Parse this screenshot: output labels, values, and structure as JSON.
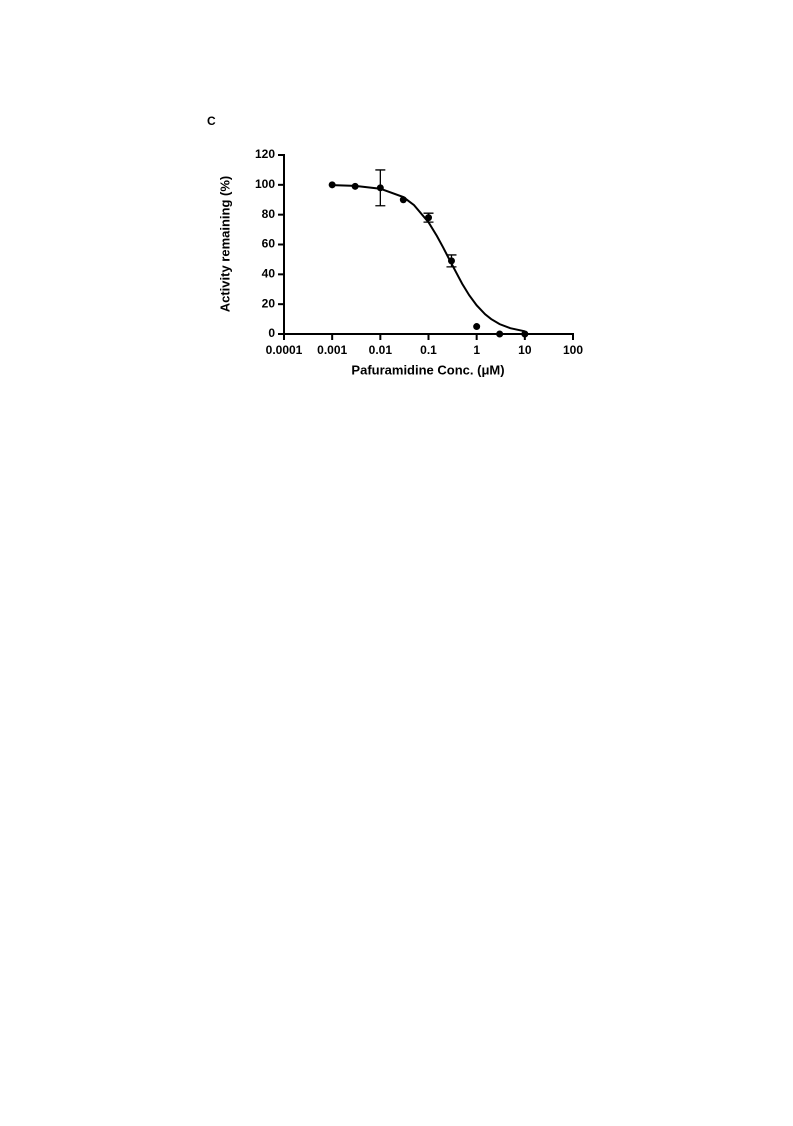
{
  "panel_label": "C",
  "chart_data": {
    "type": "scatter",
    "x_label": "Pafuramidine Conc. (μM)",
    "y_label": "Activity remaining (%)",
    "x": [
      0.001,
      0.003,
      0.01,
      0.03,
      0.1,
      0.3,
      1,
      3,
      10
    ],
    "values": [
      100,
      99,
      98,
      90,
      78,
      49,
      5,
      0,
      0
    ],
    "errors": [
      null,
      null,
      12,
      null,
      3,
      4,
      null,
      null,
      null
    ],
    "color": "#000000",
    "fit": {
      "x": [
        0.001,
        0.003,
        0.01,
        0.03,
        0.05,
        0.1,
        0.15,
        0.2,
        0.3,
        0.5,
        0.7,
        1,
        1.5,
        2,
        3,
        5,
        10
      ],
      "values": [
        99.8,
        99.3,
        97.4,
        91.8,
        86.4,
        74.9,
        65.6,
        58.2,
        47.2,
        33.7,
        26.0,
        19.2,
        13.2,
        10.0,
        6.6,
        3.9,
        1.8
      ]
    },
    "xscale": "log",
    "xlim": [
      0.0001,
      100
    ],
    "xticks": [
      0.0001,
      0.001,
      0.01,
      0.1,
      1,
      10,
      100
    ],
    "ylim": [
      0,
      120
    ],
    "yticks": [
      0,
      20,
      40,
      60,
      80,
      100,
      120
    ]
  }
}
